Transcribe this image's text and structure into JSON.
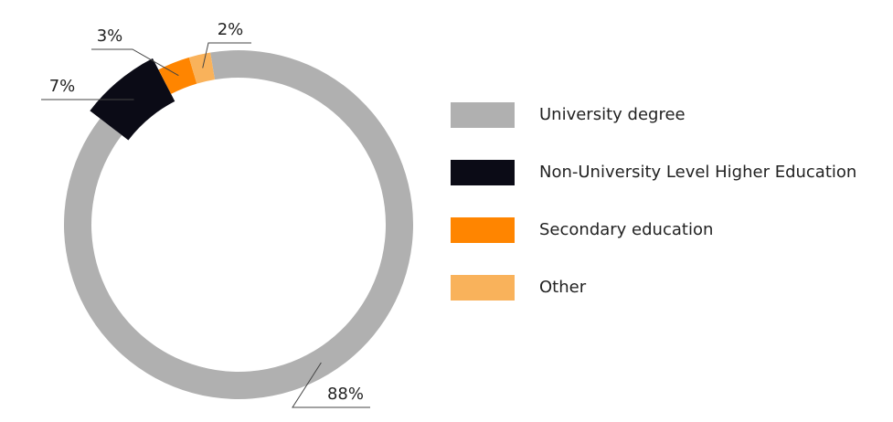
{
  "chart_data": {
    "type": "donut",
    "categories": [
      "University degree",
      "Non-University Level Higher Education",
      "Secondary education",
      "Other"
    ],
    "values": [
      88,
      7,
      3,
      2
    ],
    "value_labels": [
      "88%",
      "7%",
      "3%",
      "2%"
    ],
    "colors": [
      "#b0b0b0",
      "#0b0b16",
      "#ff8500",
      "#f9b25b"
    ],
    "legend": "right"
  }
}
